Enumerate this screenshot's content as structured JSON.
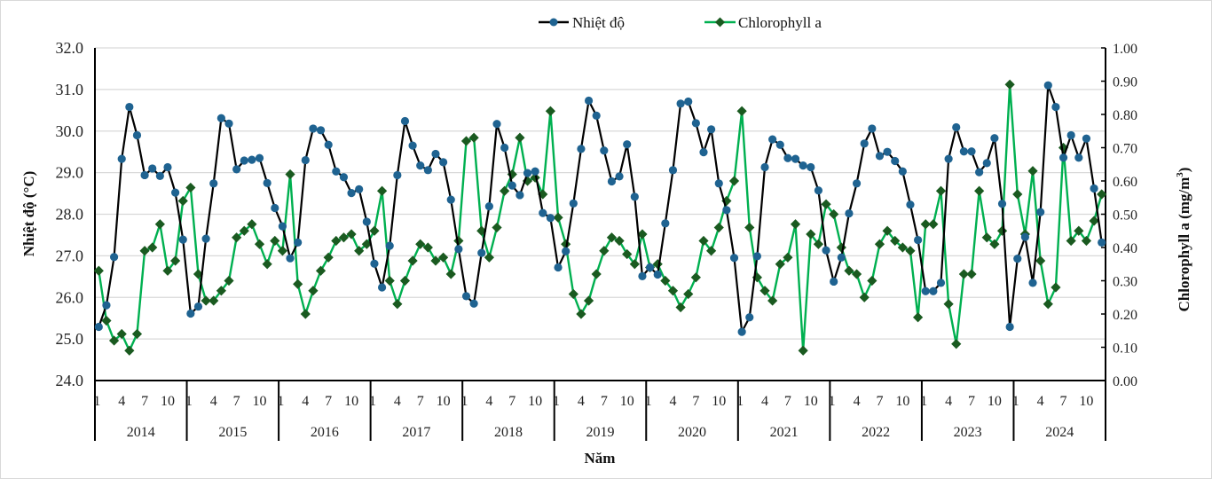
{
  "chart_data": {
    "type": "line",
    "title": "",
    "xlabel": "Năm",
    "ylabel": "Nhiệt độ (°C)",
    "y2label": "Chlorophyll a (mg/m3)",
    "y2label_base": "Chlorophyll a (mg/m",
    "y2label_sup": "3",
    "y2label_close": ")",
    "ylim": [
      24.0,
      32.0
    ],
    "y2lim": [
      0.0,
      1.0
    ],
    "yticks": [
      "24.0",
      "25.0",
      "26.0",
      "27.0",
      "28.0",
      "29.0",
      "30.0",
      "31.0",
      "32.0"
    ],
    "y2ticks": [
      "0.00",
      "0.10",
      "0.20",
      "0.30",
      "0.40",
      "0.50",
      "0.60",
      "0.70",
      "0.80",
      "0.90",
      "1.00"
    ],
    "month_ticks": [
      "1",
      "4",
      "7",
      "10"
    ],
    "years": [
      "2014",
      "2015",
      "2016",
      "2017",
      "2018",
      "2019",
      "2020",
      "2021",
      "2022",
      "2023",
      "2024"
    ],
    "grid": true,
    "legend_position": "top-center",
    "series": [
      {
        "name": "Nhiệt độ",
        "axis": "left",
        "line_color": "#000000",
        "marker_color": "#1f6391",
        "marker": "circle",
        "values": [
          25.29,
          25.81,
          26.97,
          29.33,
          30.58,
          29.9,
          28.94,
          29.1,
          28.92,
          29.13,
          28.52,
          27.39,
          25.61,
          25.78,
          27.41,
          28.74,
          30.31,
          30.18,
          29.08,
          29.29,
          29.31,
          29.35,
          28.75,
          28.15,
          27.71,
          26.94,
          27.32,
          29.3,
          30.06,
          30.02,
          29.67,
          29.03,
          28.89,
          28.51,
          28.6,
          27.82,
          26.81,
          26.24,
          27.24,
          28.94,
          30.24,
          29.65,
          29.17,
          29.06,
          29.45,
          29.25,
          28.35,
          27.16,
          26.03,
          25.85,
          27.07,
          28.19,
          30.17,
          29.6,
          28.69,
          28.46,
          28.99,
          29.03,
          28.03,
          27.91,
          26.72,
          27.11,
          28.26,
          29.57,
          30.73,
          30.37,
          29.53,
          28.79,
          28.91,
          29.68,
          28.42,
          26.51,
          26.72,
          26.55,
          27.78,
          29.06,
          30.66,
          30.71,
          30.19,
          29.49,
          30.04,
          28.74,
          28.1,
          26.95,
          25.17,
          25.52,
          26.99,
          29.13,
          29.8,
          29.67,
          29.35,
          29.33,
          29.17,
          29.13,
          28.57,
          27.13,
          26.38,
          26.96,
          28.02,
          28.74,
          29.7,
          30.06,
          29.4,
          29.5,
          29.28,
          29.03,
          28.23,
          27.38,
          26.15,
          26.15,
          26.35,
          29.33,
          30.09,
          29.51,
          29.51,
          29.01,
          29.23,
          29.83,
          28.25,
          25.29,
          26.93,
          27.45,
          26.35,
          28.05,
          31.1,
          30.58,
          29.36,
          29.9,
          29.36,
          29.82,
          28.62,
          27.32
        ]
      },
      {
        "name": "Chlorophyll a",
        "axis": "right",
        "line_color": "#00b050",
        "marker_color": "#1a5a20",
        "marker": "diamond",
        "values": [
          0.33,
          0.18,
          0.12,
          0.14,
          0.09,
          0.14,
          0.39,
          0.4,
          0.47,
          0.33,
          0.36,
          0.54,
          0.58,
          0.32,
          0.24,
          0.24,
          0.27,
          0.3,
          0.43,
          0.45,
          0.47,
          0.41,
          0.35,
          0.42,
          0.39,
          0.62,
          0.29,
          0.2,
          0.27,
          0.33,
          0.37,
          0.42,
          0.43,
          0.44,
          0.39,
          0.41,
          0.45,
          0.57,
          0.3,
          0.23,
          0.3,
          0.36,
          0.41,
          0.4,
          0.36,
          0.37,
          0.32,
          0.42,
          0.72,
          0.73,
          0.45,
          0.37,
          0.46,
          0.57,
          0.62,
          0.73,
          0.6,
          0.61,
          0.56,
          0.81,
          0.49,
          0.41,
          0.26,
          0.2,
          0.24,
          0.32,
          0.39,
          0.43,
          0.42,
          0.38,
          0.35,
          0.44,
          0.34,
          0.35,
          0.3,
          0.27,
          0.22,
          0.26,
          0.31,
          0.42,
          0.39,
          0.46,
          0.54,
          0.6,
          0.81,
          0.46,
          0.31,
          0.27,
          0.24,
          0.35,
          0.37,
          0.47,
          0.09,
          0.44,
          0.41,
          0.53,
          0.5,
          0.4,
          0.33,
          0.32,
          0.25,
          0.3,
          0.41,
          0.45,
          0.42,
          0.4,
          0.39,
          0.19,
          0.47,
          0.47,
          0.57,
          0.23,
          0.11,
          0.32,
          0.32,
          0.57,
          0.43,
          0.41,
          0.45,
          0.89,
          0.56,
          0.44,
          0.63,
          0.36,
          0.23,
          0.28,
          0.7,
          0.42,
          0.45,
          0.42,
          0.48,
          0.56
        ]
      }
    ]
  }
}
